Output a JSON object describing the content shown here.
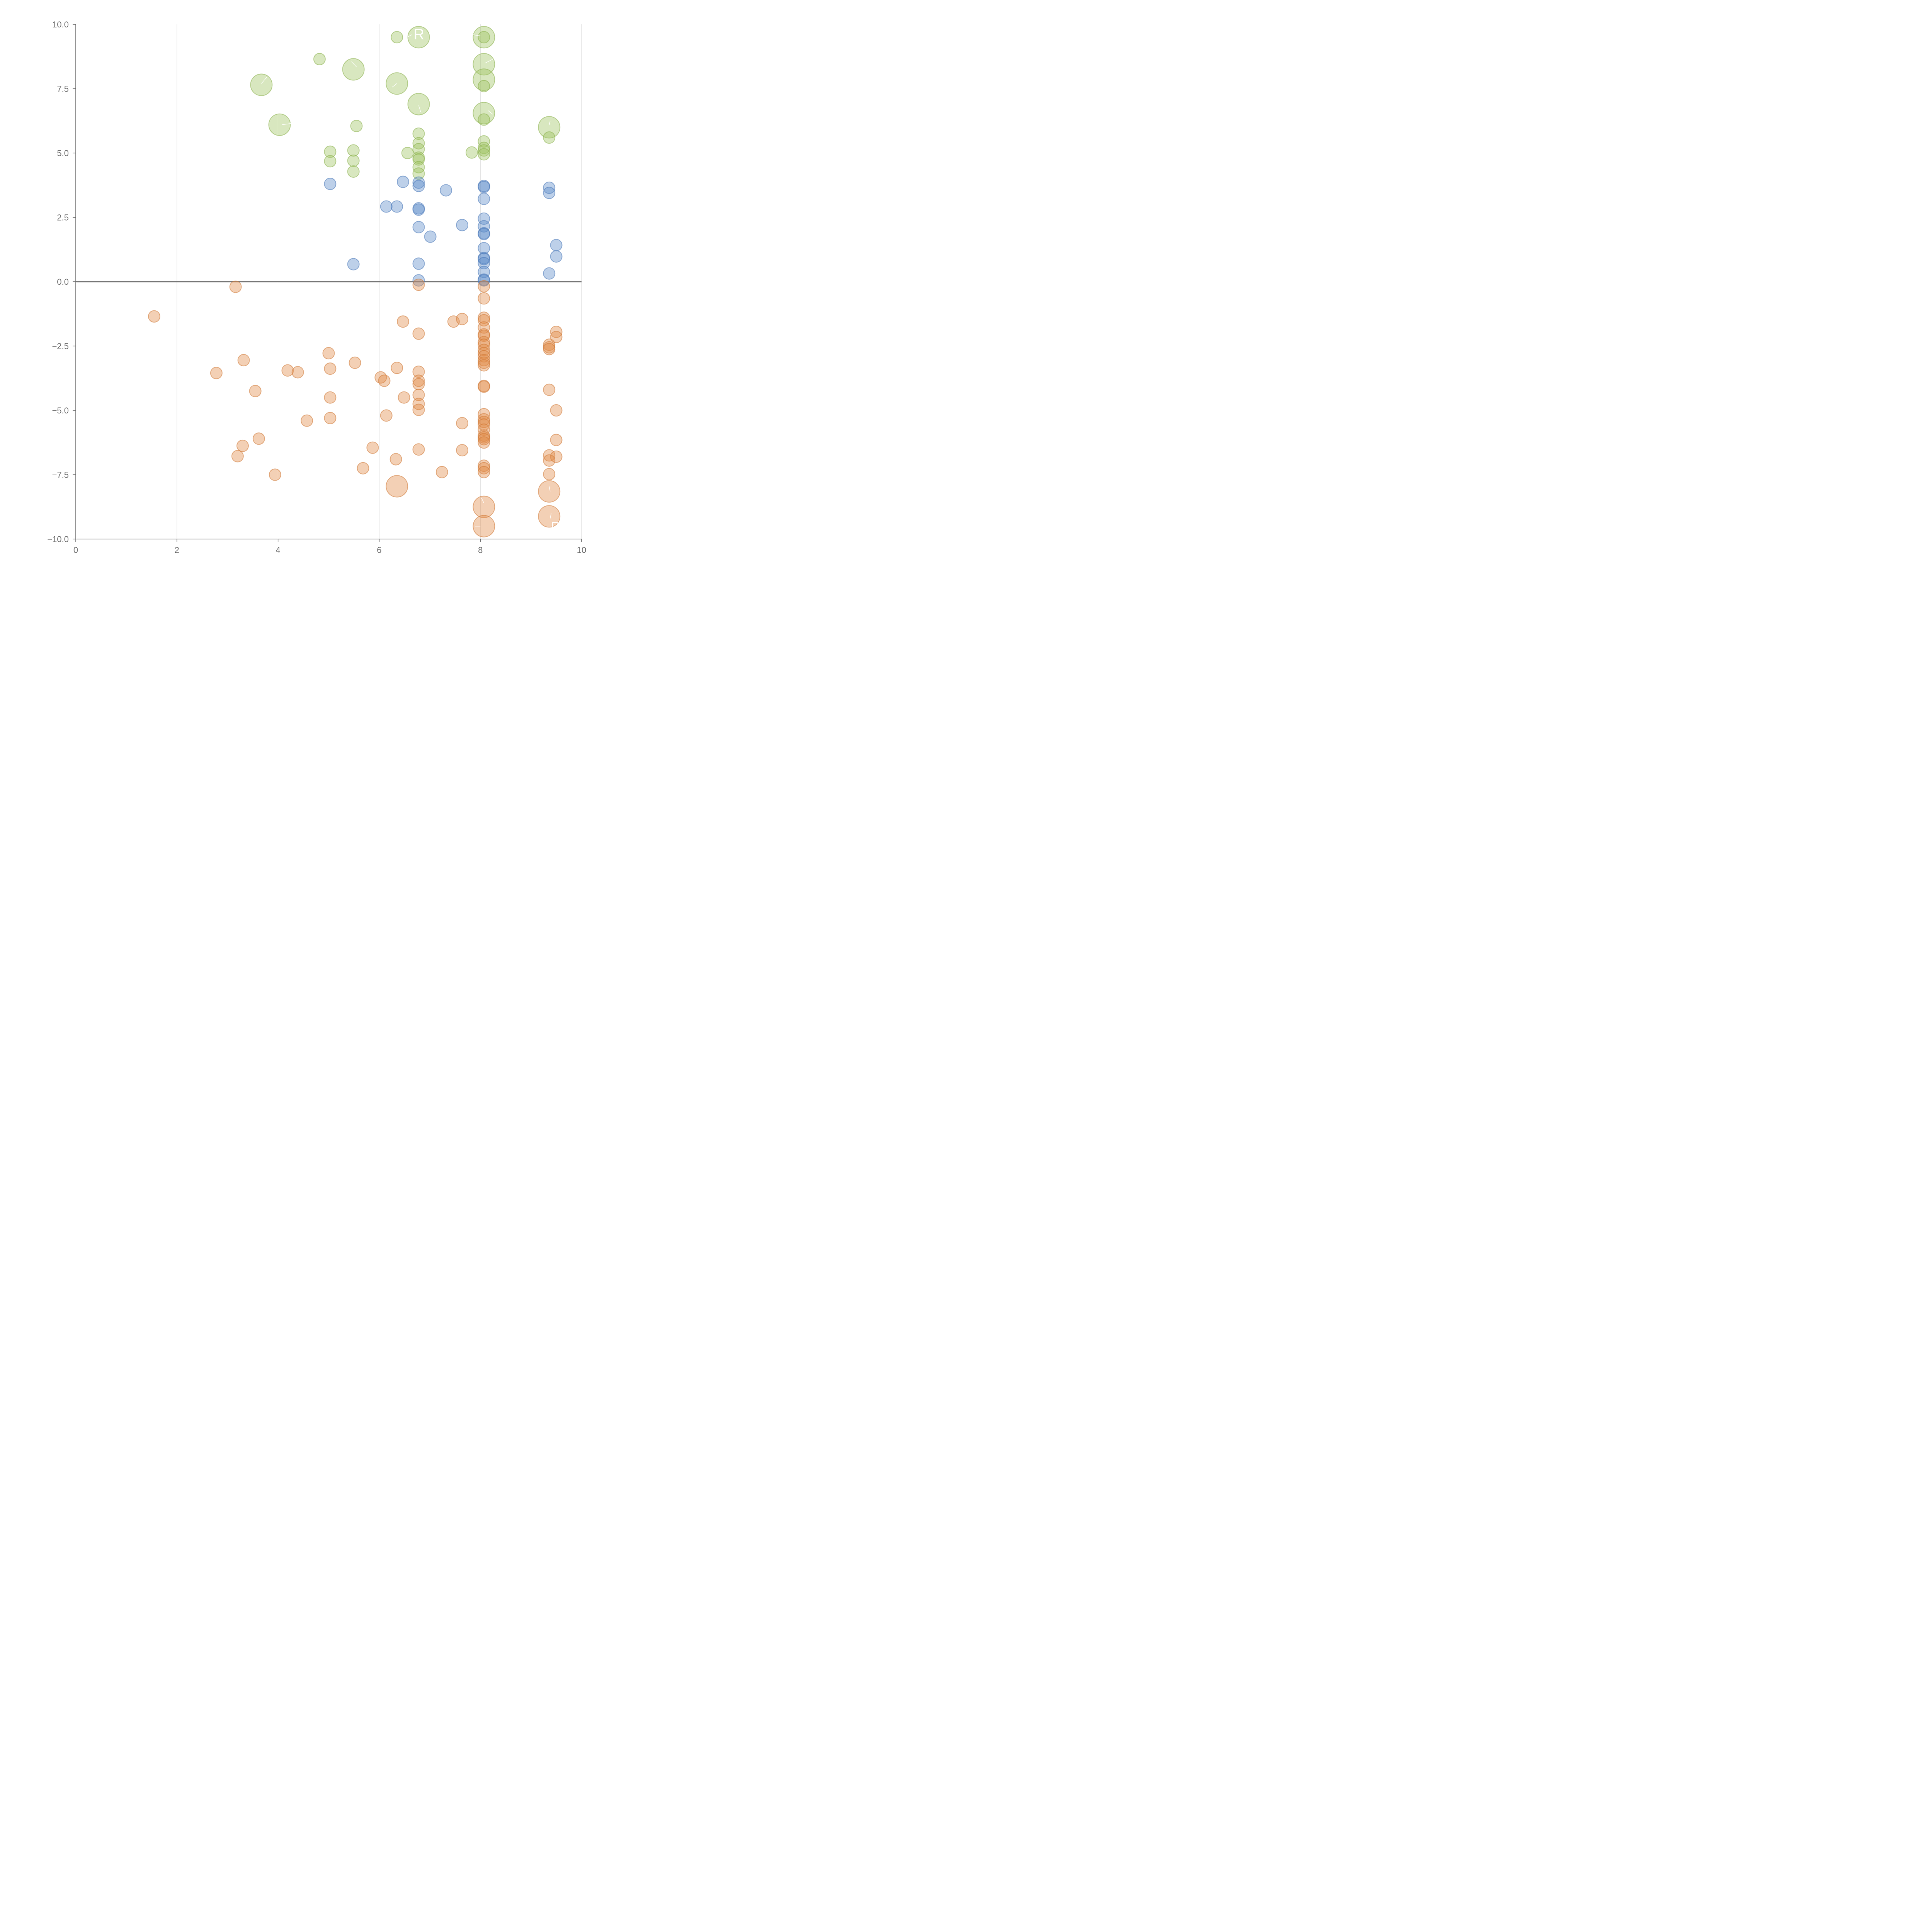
{
  "chart_data": {
    "type": "scatter",
    "title": "",
    "xlabel": "",
    "ylabel": "",
    "xlim": [
      0,
      10
    ],
    "ylim": [
      -10,
      10
    ],
    "x_ticks": [
      "0",
      "2",
      "4",
      "6",
      "8",
      "10"
    ],
    "y_ticks": [
      "−10.0",
      "−7.5",
      "−5.0",
      "−2.5",
      "0.0",
      "2.5",
      "5.0",
      "7.5",
      "10.0"
    ],
    "x_tick_values": [
      0,
      2,
      4,
      6,
      8,
      10
    ],
    "y_tick_values": [
      -10,
      -7.5,
      -5,
      -2.5,
      0,
      2.5,
      5,
      7.5,
      10
    ],
    "grid": "vertical",
    "zero_line": 0,
    "colors": {
      "green": "#9dc45f",
      "blue": "#5b8ac9",
      "orange": "#e08a45",
      "green_stroke": "#8ab04d",
      "blue_stroke": "#4a78b8",
      "orange_stroke": "#cf7a38",
      "axis": "#666666",
      "grid": "#d9d9d9"
    },
    "size_units": "relative marker size (1 = small dot)",
    "series": [
      {
        "name": "green",
        "color": "#9dc45f",
        "points": [
          [
            6.35,
            9.5,
            1
          ],
          [
            6.78,
            9.5,
            2
          ],
          [
            8.07,
            9.5,
            2
          ],
          [
            8.07,
            9.5,
            1
          ],
          [
            4.82,
            8.65,
            1
          ],
          [
            5.49,
            8.25,
            2
          ],
          [
            8.07,
            8.45,
            2
          ],
          [
            3.67,
            7.65,
            2
          ],
          [
            6.35,
            7.7,
            2
          ],
          [
            8.07,
            7.85,
            2
          ],
          [
            8.07,
            7.6,
            1
          ],
          [
            6.78,
            6.9,
            2
          ],
          [
            8.07,
            6.55,
            2
          ],
          [
            8.07,
            6.3,
            1
          ],
          [
            4.03,
            6.1,
            2
          ],
          [
            5.55,
            6.05,
            1
          ],
          [
            9.36,
            6.0,
            2
          ],
          [
            9.36,
            5.6,
            1
          ],
          [
            6.78,
            5.75,
            1
          ],
          [
            6.78,
            5.38,
            1
          ],
          [
            6.78,
            5.15,
            1
          ],
          [
            6.56,
            5.0,
            1
          ],
          [
            7.83,
            5.02,
            1
          ],
          [
            8.07,
            5.45,
            1
          ],
          [
            8.07,
            5.2,
            1
          ],
          [
            8.07,
            5.1,
            1
          ],
          [
            8.07,
            4.95,
            1
          ],
          [
            5.03,
            5.05,
            1
          ],
          [
            5.03,
            4.68,
            1
          ],
          [
            5.49,
            5.1,
            1
          ],
          [
            5.49,
            4.7,
            1
          ],
          [
            5.49,
            4.28,
            1
          ],
          [
            6.78,
            4.82,
            1
          ],
          [
            6.78,
            4.75,
            1
          ],
          [
            6.78,
            4.45,
            1
          ],
          [
            6.78,
            4.2,
            1
          ]
        ]
      },
      {
        "name": "blue",
        "color": "#5b8ac9",
        "points": [
          [
            5.03,
            3.8,
            1
          ],
          [
            6.47,
            3.88,
            1
          ],
          [
            6.78,
            3.85,
            1
          ],
          [
            6.78,
            3.72,
            1
          ],
          [
            7.32,
            3.55,
            1
          ],
          [
            8.07,
            3.72,
            1
          ],
          [
            8.07,
            3.68,
            1
          ],
          [
            8.07,
            3.22,
            1
          ],
          [
            9.36,
            3.65,
            1
          ],
          [
            9.36,
            3.45,
            1
          ],
          [
            6.14,
            2.92,
            1
          ],
          [
            6.35,
            2.92,
            1
          ],
          [
            6.78,
            2.85,
            1
          ],
          [
            6.78,
            2.8,
            1
          ],
          [
            6.78,
            2.12,
            1
          ],
          [
            7.64,
            2.2,
            1
          ],
          [
            7.01,
            1.75,
            1
          ],
          [
            8.07,
            2.45,
            1
          ],
          [
            8.07,
            2.15,
            1
          ],
          [
            8.07,
            1.88,
            1
          ],
          [
            8.07,
            1.85,
            1
          ],
          [
            8.07,
            1.3,
            1
          ],
          [
            8.07,
            0.92,
            1
          ],
          [
            8.07,
            0.88,
            1
          ],
          [
            8.07,
            0.72,
            1
          ],
          [
            8.07,
            0.38,
            1
          ],
          [
            8.07,
            0.08,
            1
          ],
          [
            8.07,
            0.05,
            1
          ],
          [
            9.5,
            1.42,
            1
          ],
          [
            9.5,
            0.98,
            1
          ],
          [
            9.36,
            0.32,
            1
          ],
          [
            5.49,
            0.68,
            1
          ],
          [
            6.78,
            0.7,
            1
          ],
          [
            6.78,
            0.05,
            1
          ]
        ]
      },
      {
        "name": "orange",
        "color": "#e08a45",
        "points": [
          [
            3.16,
            -0.2,
            1
          ],
          [
            1.55,
            -1.35,
            1
          ],
          [
            6.78,
            -0.12,
            1
          ],
          [
            8.07,
            -0.18,
            1
          ],
          [
            8.07,
            -0.65,
            1
          ],
          [
            6.47,
            -1.55,
            1
          ],
          [
            6.78,
            -2.02,
            1
          ],
          [
            7.47,
            -1.55,
            1
          ],
          [
            7.64,
            -1.45,
            1
          ],
          [
            8.07,
            -1.4,
            1
          ],
          [
            8.07,
            -1.5,
            1
          ],
          [
            8.07,
            -1.78,
            1
          ],
          [
            8.07,
            -2.05,
            1
          ],
          [
            8.07,
            -2.1,
            1
          ],
          [
            8.07,
            -2.35,
            1
          ],
          [
            8.07,
            -2.45,
            1
          ],
          [
            8.07,
            -2.65,
            1
          ],
          [
            8.07,
            -2.78,
            1
          ],
          [
            8.07,
            -2.9,
            1
          ],
          [
            8.07,
            -3.05,
            1
          ],
          [
            8.07,
            -3.15,
            1
          ],
          [
            8.07,
            -3.25,
            1
          ],
          [
            9.5,
            -1.95,
            1
          ],
          [
            9.5,
            -2.15,
            1
          ],
          [
            9.36,
            -2.45,
            1
          ],
          [
            9.36,
            -2.55,
            1
          ],
          [
            9.36,
            -2.62,
            1
          ],
          [
            5.0,
            -2.78,
            1
          ],
          [
            5.03,
            -3.38,
            1
          ],
          [
            5.52,
            -3.15,
            1
          ],
          [
            3.32,
            -3.05,
            1
          ],
          [
            2.78,
            -3.55,
            1
          ],
          [
            4.19,
            -3.45,
            1
          ],
          [
            4.39,
            -3.52,
            1
          ],
          [
            3.55,
            -4.25,
            1
          ],
          [
            6.35,
            -3.35,
            1
          ],
          [
            6.03,
            -3.72,
            1
          ],
          [
            6.1,
            -3.85,
            1
          ],
          [
            6.78,
            -3.5,
            1
          ],
          [
            6.78,
            -3.85,
            1
          ],
          [
            6.78,
            -3.98,
            1
          ],
          [
            6.78,
            -4.4,
            1
          ],
          [
            6.78,
            -4.75,
            1
          ],
          [
            6.78,
            -4.98,
            1
          ],
          [
            6.49,
            -4.5,
            1
          ],
          [
            5.03,
            -4.5,
            1
          ],
          [
            5.03,
            -5.3,
            1
          ],
          [
            4.57,
            -5.4,
            1
          ],
          [
            6.14,
            -5.2,
            1
          ],
          [
            8.07,
            -4.05,
            1
          ],
          [
            8.07,
            -4.08,
            1
          ],
          [
            9.36,
            -4.2,
            1
          ],
          [
            9.5,
            -5.0,
            1
          ],
          [
            7.64,
            -5.5,
            1
          ],
          [
            8.07,
            -5.15,
            1
          ],
          [
            8.07,
            -5.35,
            1
          ],
          [
            8.07,
            -5.45,
            1
          ],
          [
            8.07,
            -5.55,
            1
          ],
          [
            8.07,
            -5.75,
            1
          ],
          [
            8.07,
            -5.98,
            1
          ],
          [
            8.07,
            -6.05,
            1
          ],
          [
            8.07,
            -6.12,
            1
          ],
          [
            8.07,
            -6.25,
            1
          ],
          [
            3.62,
            -6.1,
            1
          ],
          [
            3.3,
            -6.38,
            1
          ],
          [
            3.2,
            -6.78,
            1
          ],
          [
            3.94,
            -7.5,
            1
          ],
          [
            5.87,
            -6.45,
            1
          ],
          [
            5.68,
            -7.25,
            1
          ],
          [
            6.33,
            -6.9,
            1
          ],
          [
            6.78,
            -6.52,
            1
          ],
          [
            7.64,
            -6.55,
            1
          ],
          [
            7.24,
            -7.4,
            1
          ],
          [
            8.07,
            -7.15,
            1
          ],
          [
            8.07,
            -7.25,
            1
          ],
          [
            8.07,
            -7.4,
            1
          ],
          [
            9.5,
            -6.15,
            1
          ],
          [
            9.36,
            -6.75,
            1
          ],
          [
            9.5,
            -6.8,
            1
          ],
          [
            9.36,
            -6.95,
            1
          ],
          [
            9.36,
            -7.48,
            1
          ],
          [
            6.35,
            -7.95,
            2
          ],
          [
            9.36,
            -8.15,
            2
          ],
          [
            8.07,
            -8.75,
            2
          ],
          [
            9.36,
            -9.12,
            2
          ],
          [
            8.07,
            -9.5,
            2
          ]
        ]
      }
    ],
    "callouts": [
      {
        "text": "R",
        "from": [
          6.5,
          9.45
        ],
        "to": [
          6.65,
          9.6
        ]
      },
      {
        "text": "",
        "from": [
          8.0,
          9.55
        ],
        "to": [
          7.7,
          9.65
        ]
      },
      {
        "text": "",
        "from": [
          8.1,
          8.5
        ],
        "to": [
          8.25,
          8.65
        ]
      },
      {
        "text": "",
        "from": [
          5.55,
          8.35
        ],
        "to": [
          5.45,
          8.55
        ]
      },
      {
        "text": "",
        "from": [
          3.67,
          7.7
        ],
        "to": [
          3.78,
          7.95
        ]
      },
      {
        "text": "",
        "from": [
          6.25,
          7.55
        ],
        "to": [
          6.35,
          7.7
        ]
      },
      {
        "text": "",
        "from": [
          6.78,
          6.85
        ],
        "to": [
          6.82,
          6.6
        ]
      },
      {
        "text": "",
        "from": [
          8.15,
          6.65
        ],
        "to": [
          8.25,
          6.5
        ]
      },
      {
        "text": "",
        "from": [
          4.08,
          6.1
        ],
        "to": [
          4.27,
          6.15
        ]
      },
      {
        "text": "",
        "from": [
          9.36,
          6.08
        ],
        "to": [
          9.38,
          6.25
        ]
      },
      {
        "text": "",
        "from": [
          9.36,
          -7.95
        ],
        "to": [
          9.38,
          -8.15
        ]
      },
      {
        "text": "",
        "from": [
          8.07,
          -8.6
        ],
        "to": [
          8.02,
          -8.4
        ]
      },
      {
        "text": "",
        "from": [
          9.4,
          -9.0
        ],
        "to": [
          9.38,
          -9.2
        ]
      },
      {
        "text": "",
        "from": [
          7.9,
          -9.5
        ],
        "to": [
          8.0,
          -9.5
        ]
      },
      {
        "text": "D",
        "from": [
          9.36,
          -9.55
        ],
        "to": [
          9.36,
          -9.55
        ]
      }
    ]
  }
}
